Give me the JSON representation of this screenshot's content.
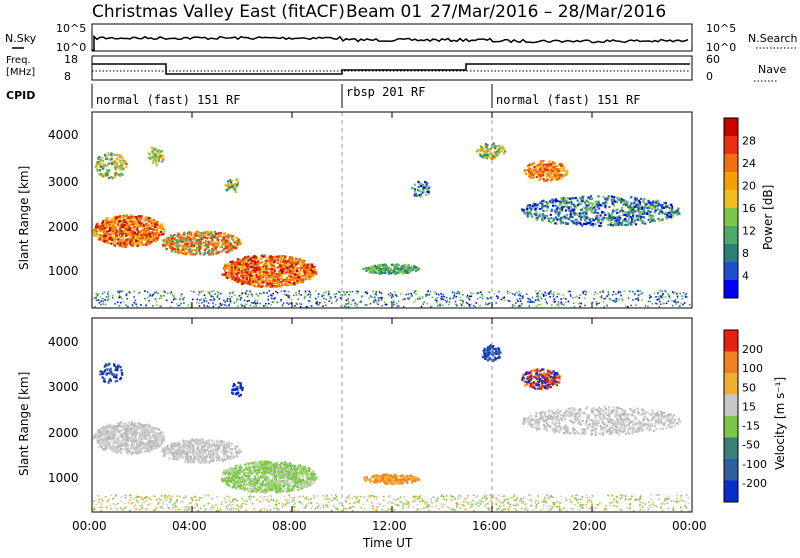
{
  "title": "Christmas Valley East (fitACF)",
  "beam": "Beam 01",
  "daterange": "27/Mar/2016 – 28/Mar/2016",
  "nsky": {
    "label": "N.Sky",
    "ticks": [
      "10^5",
      "10^0"
    ],
    "right_label": "N.Search",
    "right_ticks": [
      "10^5",
      "10^0"
    ]
  },
  "freq": {
    "label": "Freq.",
    "unit": "[MHz]",
    "ticks": [
      "18",
      "8"
    ],
    "right_label": "Nave",
    "right_ticks": [
      "60",
      "0"
    ]
  },
  "cpid": {
    "label": "CPID",
    "segments": [
      {
        "text": "normal (fast) 151 RF",
        "start": 0,
        "end": 10
      },
      {
        "text": "rbsp 201 RF",
        "start": 10,
        "end": 16
      },
      {
        "text": "normal (fast) 151 RF",
        "start": 16,
        "end": 24
      }
    ]
  },
  "chart_data": [
    {
      "type": "heatmap",
      "name": "power",
      "ylabel": "Slant Range [km]",
      "yticks": [
        "4000",
        "3000",
        "2000",
        "1000"
      ],
      "ylim": [
        180,
        4500
      ],
      "colorbar_label": "Power [dB]",
      "colorbar_ticks": [
        "28",
        "24",
        "20",
        "16",
        "12",
        "8",
        "4"
      ],
      "colors": [
        "#0000ff",
        "#1f4fcf",
        "#2c7f74",
        "#4ea86a",
        "#7cc64a",
        "#f0c020",
        "#f5a000",
        "#f07010",
        "#e83010",
        "#cc0000"
      ]
    },
    {
      "type": "heatmap",
      "name": "velocity",
      "ylabel": "Slant Range [km]",
      "yticks": [
        "4000",
        "3000",
        "2000",
        "1000"
      ],
      "ylim": [
        180,
        4500
      ],
      "colorbar_label": "Velocity [m s⁻¹]",
      "colorbar_ticks": [
        "200",
        "100",
        "50",
        "15",
        "-15",
        "-50",
        "-100",
        "-200"
      ],
      "colors": [
        "#0a2cc8",
        "#2f5fa0",
        "#3a7f7a",
        "#7cc64a",
        "#c8c8c8",
        "#f0b030",
        "#f08020",
        "#e82010"
      ]
    }
  ],
  "xaxis": {
    "xlabel": "Time UT",
    "xticks": [
      "00:00",
      "04:00",
      "08:00",
      "12:00",
      "16:00",
      "20:00",
      "00:00"
    ],
    "xlim": [
      0,
      24
    ]
  }
}
